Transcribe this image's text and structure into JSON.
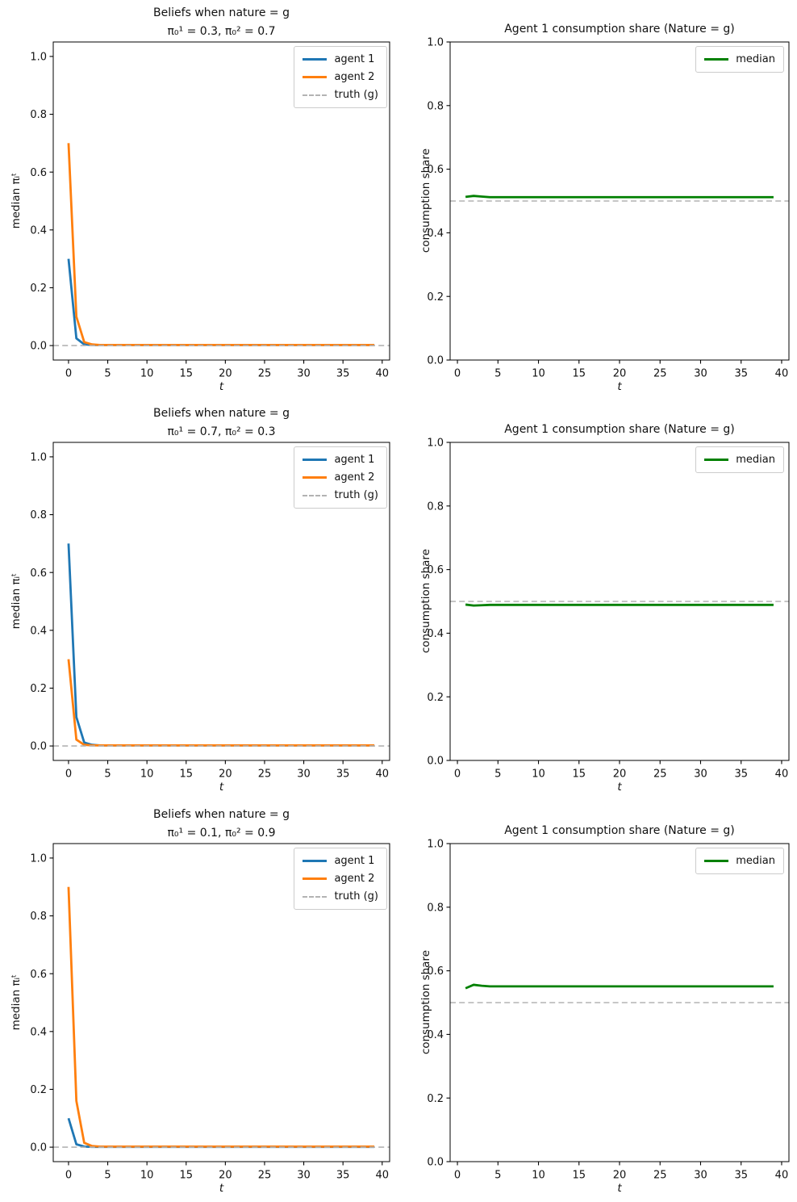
{
  "palette": {
    "agent1": "#1f77b4",
    "agent2": "#ff7f0e",
    "median": "#008000",
    "truth": "#b3b3b3",
    "axis": "#000000"
  },
  "chart_data": [
    {
      "type": "line",
      "title_lines": [
        "Beliefs when nature = g",
        "π₀¹ = 0.3, π₀² = 0.7"
      ],
      "xlabel": "t",
      "ylabel": "median πᵢᵗ",
      "xlim": [
        -1.95,
        40.95
      ],
      "ylim": [
        -0.05,
        1.05
      ],
      "xtick_values": [
        0,
        5,
        10,
        15,
        20,
        25,
        30,
        35,
        40
      ],
      "xtick_labels": [
        "0",
        "5",
        "10",
        "15",
        "20",
        "25",
        "30",
        "35",
        "40"
      ],
      "ytick_values": [
        0.0,
        0.2,
        0.4,
        0.6,
        0.8,
        1.0
      ],
      "ytick_labels": [
        "0.0",
        "0.2",
        "0.4",
        "0.6",
        "0.8",
        "1.0"
      ],
      "series": [
        {
          "name": "agent 1",
          "color_key": "agent1",
          "t_start": 0,
          "t_end": 39,
          "y_head": [
            0.3,
            0.025,
            0.004
          ],
          "y_flat": 0.002
        },
        {
          "name": "agent 2",
          "color_key": "agent2",
          "t_start": 0,
          "t_end": 39,
          "y_head": [
            0.7,
            0.1,
            0.012,
            0.004
          ],
          "y_flat": 0.002
        }
      ],
      "ref_line": {
        "y": 0.0,
        "label": "truth (g)",
        "color_key": "truth",
        "dash": true
      },
      "legend": [
        {
          "label": "agent 1",
          "color_key": "agent1",
          "dash": false
        },
        {
          "label": "agent 2",
          "color_key": "agent2",
          "dash": false
        },
        {
          "label": "truth (g)",
          "color_key": "truth",
          "dash": true
        }
      ]
    },
    {
      "type": "line",
      "title_lines": [
        "Agent 1 consumption share (Nature = g)"
      ],
      "xlabel": "t",
      "ylabel": "consumption share",
      "xlim": [
        -0.9,
        40.9
      ],
      "ylim": [
        0.0,
        1.0
      ],
      "xtick_values": [
        0,
        5,
        10,
        15,
        20,
        25,
        30,
        35,
        40
      ],
      "xtick_labels": [
        "0",
        "5",
        "10",
        "15",
        "20",
        "25",
        "30",
        "35",
        "40"
      ],
      "ytick_values": [
        0.0,
        0.2,
        0.4,
        0.6,
        0.8,
        1.0
      ],
      "ytick_labels": [
        "0.0",
        "0.2",
        "0.4",
        "0.6",
        "0.8",
        "1.0"
      ],
      "series": [
        {
          "name": "median",
          "color_key": "median",
          "t_start": 1,
          "t_end": 39,
          "y_head": [
            0.513,
            0.516,
            0.514
          ],
          "y_flat": 0.512
        }
      ],
      "ref_line": {
        "y": 0.5,
        "label": "",
        "color_key": "truth",
        "dash": true
      },
      "legend": [
        {
          "label": "median",
          "color_key": "median",
          "dash": false
        }
      ]
    },
    {
      "type": "line",
      "title_lines": [
        "Beliefs when nature = g",
        "π₀¹ = 0.7, π₀² = 0.3"
      ],
      "xlabel": "t",
      "ylabel": "median πᵢᵗ",
      "xlim": [
        -1.95,
        40.95
      ],
      "ylim": [
        -0.05,
        1.05
      ],
      "xtick_values": [
        0,
        5,
        10,
        15,
        20,
        25,
        30,
        35,
        40
      ],
      "xtick_labels": [
        "0",
        "5",
        "10",
        "15",
        "20",
        "25",
        "30",
        "35",
        "40"
      ],
      "ytick_values": [
        0.0,
        0.2,
        0.4,
        0.6,
        0.8,
        1.0
      ],
      "ytick_labels": [
        "0.0",
        "0.2",
        "0.4",
        "0.6",
        "0.8",
        "1.0"
      ],
      "series": [
        {
          "name": "agent 1",
          "color_key": "agent1",
          "t_start": 0,
          "t_end": 39,
          "y_head": [
            0.7,
            0.1,
            0.012,
            0.004
          ],
          "y_flat": 0.002
        },
        {
          "name": "agent 2",
          "color_key": "agent2",
          "t_start": 0,
          "t_end": 39,
          "y_head": [
            0.3,
            0.022,
            0.004
          ],
          "y_flat": 0.002
        }
      ],
      "ref_line": {
        "y": 0.0,
        "label": "truth (g)",
        "color_key": "truth",
        "dash": true
      },
      "legend": [
        {
          "label": "agent 1",
          "color_key": "agent1",
          "dash": false
        },
        {
          "label": "agent 2",
          "color_key": "agent2",
          "dash": false
        },
        {
          "label": "truth (g)",
          "color_key": "truth",
          "dash": true
        }
      ]
    },
    {
      "type": "line",
      "title_lines": [
        "Agent 1 consumption share (Nature = g)"
      ],
      "xlabel": "t",
      "ylabel": "consumption share",
      "xlim": [
        -0.9,
        40.9
      ],
      "ylim": [
        0.0,
        1.0
      ],
      "xtick_values": [
        0,
        5,
        10,
        15,
        20,
        25,
        30,
        35,
        40
      ],
      "xtick_labels": [
        "0",
        "5",
        "10",
        "15",
        "20",
        "25",
        "30",
        "35",
        "40"
      ],
      "ytick_values": [
        0.0,
        0.2,
        0.4,
        0.6,
        0.8,
        1.0
      ],
      "ytick_labels": [
        "0.0",
        "0.2",
        "0.4",
        "0.6",
        "0.8",
        "1.0"
      ],
      "series": [
        {
          "name": "median",
          "color_key": "median",
          "t_start": 1,
          "t_end": 39,
          "y_head": [
            0.49,
            0.487,
            0.488
          ],
          "y_flat": 0.489
        }
      ],
      "ref_line": {
        "y": 0.5,
        "label": "",
        "color_key": "truth",
        "dash": true
      },
      "legend": [
        {
          "label": "median",
          "color_key": "median",
          "dash": false
        }
      ]
    },
    {
      "type": "line",
      "title_lines": [
        "Beliefs when nature = g",
        "π₀¹ = 0.1, π₀² = 0.9"
      ],
      "xlabel": "t",
      "ylabel": "median πᵢᵗ",
      "xlim": [
        -1.95,
        40.95
      ],
      "ylim": [
        -0.05,
        1.05
      ],
      "xtick_values": [
        0,
        5,
        10,
        15,
        20,
        25,
        30,
        35,
        40
      ],
      "xtick_labels": [
        "0",
        "5",
        "10",
        "15",
        "20",
        "25",
        "30",
        "35",
        "40"
      ],
      "ytick_values": [
        0.0,
        0.2,
        0.4,
        0.6,
        0.8,
        1.0
      ],
      "ytick_labels": [
        "0.0",
        "0.2",
        "0.4",
        "0.6",
        "0.8",
        "1.0"
      ],
      "series": [
        {
          "name": "agent 1",
          "color_key": "agent1",
          "t_start": 0,
          "t_end": 39,
          "y_head": [
            0.1,
            0.01,
            0.002
          ],
          "y_flat": 0.001
        },
        {
          "name": "agent 2",
          "color_key": "agent2",
          "t_start": 0,
          "t_end": 39,
          "y_head": [
            0.9,
            0.16,
            0.015,
            0.004
          ],
          "y_flat": 0.002
        }
      ],
      "ref_line": {
        "y": 0.0,
        "label": "truth (g)",
        "color_key": "truth",
        "dash": true
      },
      "legend": [
        {
          "label": "agent 1",
          "color_key": "agent1",
          "dash": false
        },
        {
          "label": "agent 2",
          "color_key": "agent2",
          "dash": false
        },
        {
          "label": "truth (g)",
          "color_key": "truth",
          "dash": true
        }
      ]
    },
    {
      "type": "line",
      "title_lines": [
        "Agent 1 consumption share (Nature = g)"
      ],
      "xlabel": "t",
      "ylabel": "consumption share",
      "xlim": [
        -0.9,
        40.9
      ],
      "ylim": [
        0.0,
        1.0
      ],
      "xtick_values": [
        0,
        5,
        10,
        15,
        20,
        25,
        30,
        35,
        40
      ],
      "xtick_labels": [
        "0",
        "5",
        "10",
        "15",
        "20",
        "25",
        "30",
        "35",
        "40"
      ],
      "ytick_values": [
        0.0,
        0.2,
        0.4,
        0.6,
        0.8,
        1.0
      ],
      "ytick_labels": [
        "0.0",
        "0.2",
        "0.4",
        "0.6",
        "0.8",
        "1.0"
      ],
      "series": [
        {
          "name": "median",
          "color_key": "median",
          "t_start": 1,
          "t_end": 39,
          "y_head": [
            0.545,
            0.556,
            0.553
          ],
          "y_flat": 0.551
        }
      ],
      "ref_line": {
        "y": 0.5,
        "label": "",
        "color_key": "truth",
        "dash": true
      },
      "legend": [
        {
          "label": "median",
          "color_key": "median",
          "dash": false
        }
      ]
    }
  ]
}
